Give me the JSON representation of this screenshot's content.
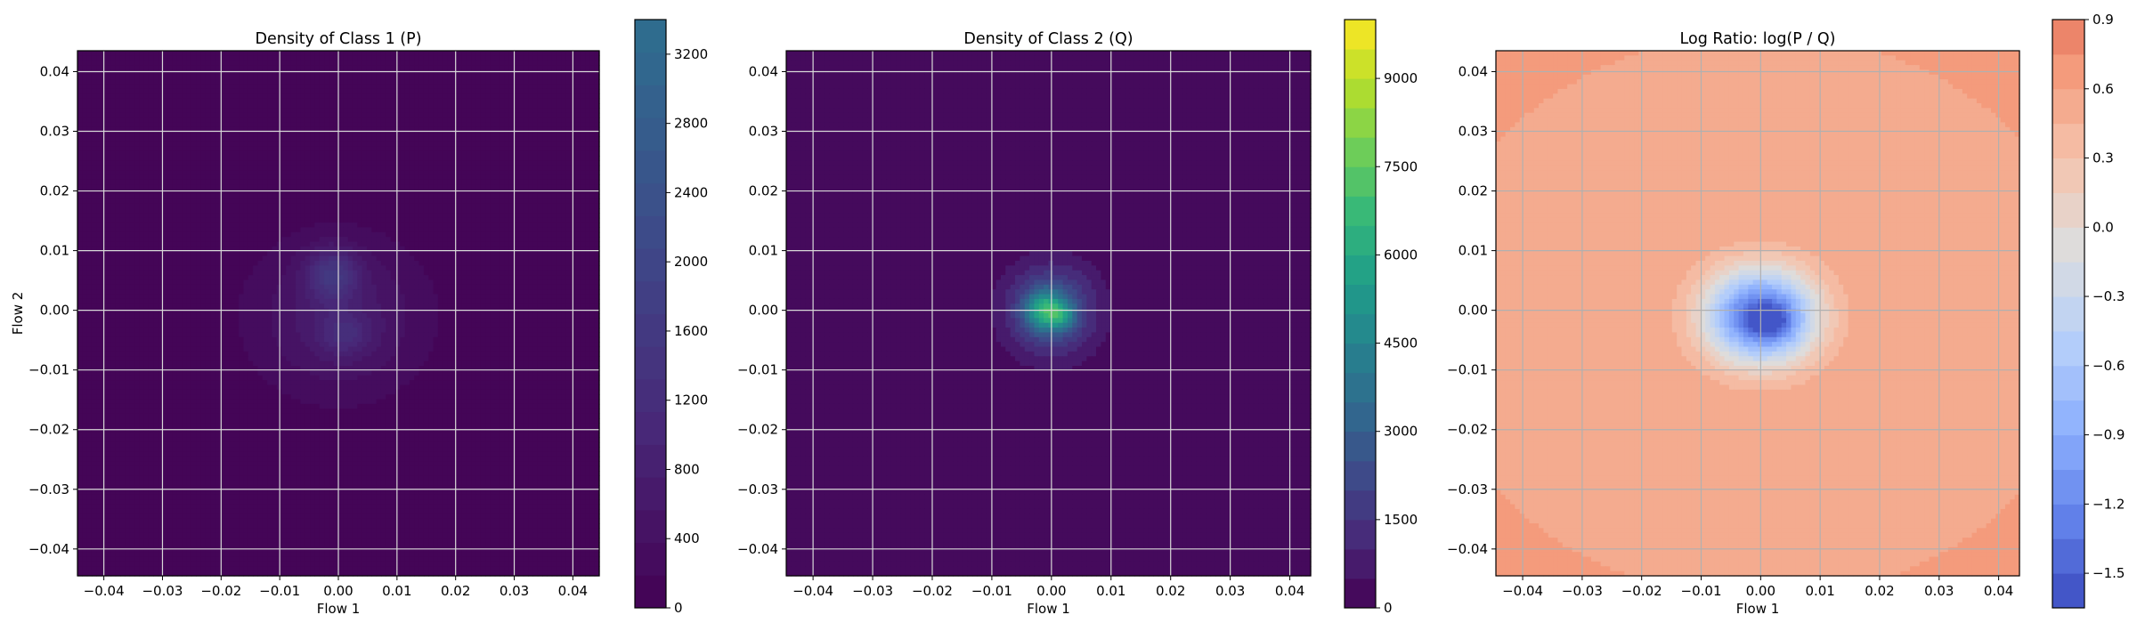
{
  "chart_data": [
    {
      "type": "heatmap",
      "title": "Density of Class 1 (P)",
      "xlabel": "Flow 1",
      "ylabel": "Flow 2",
      "xlim": [
        -0.0445,
        0.0445
      ],
      "ylim": [
        -0.0445,
        0.0435
      ],
      "x_ticks": [
        -0.04,
        -0.03,
        -0.02,
        -0.01,
        0.0,
        0.01,
        0.02,
        0.03,
        0.04
      ],
      "x_tick_labels": [
        "−0.04",
        "−0.03",
        "−0.02",
        "−0.01",
        "0.00",
        "0.01",
        "0.02",
        "0.03",
        "0.04"
      ],
      "y_ticks": [
        -0.04,
        -0.03,
        -0.02,
        -0.01,
        0.0,
        0.01,
        0.02,
        0.03,
        0.04
      ],
      "y_tick_labels": [
        "−0.04",
        "−0.03",
        "−0.02",
        "−0.01",
        "0.00",
        "0.01",
        "0.02",
        "0.03",
        "0.04"
      ],
      "grid": true,
      "colormap": "viridis",
      "colorbar": {
        "vmin": 0,
        "vmax": 3400,
        "cmap_max_fraction": 0.36,
        "levels": 18,
        "ticks": [
          0,
          400,
          800,
          1200,
          1600,
          2000,
          2400,
          2800,
          3200
        ],
        "tick_labels": [
          "0",
          "400",
          "800",
          "1200",
          "1600",
          "2000",
          "2400",
          "2800",
          "3200"
        ]
      },
      "density": {
        "background": 0,
        "blobs": [
          {
            "cx": 0.0,
            "cy": -0.001,
            "sx": 0.0105,
            "sy": 0.0095,
            "amp": 700
          },
          {
            "cx": -0.001,
            "cy": 0.006,
            "sx": 0.003,
            "sy": 0.003,
            "amp": 1100
          },
          {
            "cx": 0.001,
            "cy": -0.004,
            "sx": 0.003,
            "sy": 0.0025,
            "amp": 600
          }
        ]
      }
    },
    {
      "type": "heatmap",
      "title": "Density of Class 2 (Q)",
      "xlabel": "Flow 1",
      "ylabel": "",
      "xlim": [
        -0.0445,
        0.0435
      ],
      "ylim": [
        -0.0445,
        0.0435
      ],
      "x_ticks": [
        -0.04,
        -0.03,
        -0.02,
        -0.01,
        0.0,
        0.01,
        0.02,
        0.03,
        0.04
      ],
      "x_tick_labels": [
        "−0.04",
        "−0.03",
        "−0.02",
        "−0.01",
        "0.00",
        "0.01",
        "0.02",
        "0.03",
        "0.04"
      ],
      "y_ticks": [
        -0.04,
        -0.03,
        -0.02,
        -0.01,
        0.0,
        0.01,
        0.02,
        0.03,
        0.04
      ],
      "y_tick_labels": [
        "−0.04",
        "−0.03",
        "−0.02",
        "−0.01",
        "0.00",
        "0.01",
        "0.02",
        "0.03",
        "0.04"
      ],
      "grid": true,
      "colormap": "viridis",
      "colorbar": {
        "vmin": 0,
        "vmax": 10000,
        "cmap_max_fraction": 1.0,
        "levels": 20,
        "ticks": [
          0,
          1500,
          3000,
          4500,
          6000,
          7500,
          9000
        ],
        "tick_labels": [
          "0",
          "1500",
          "3000",
          "4500",
          "6000",
          "7500",
          "9000"
        ]
      },
      "density": {
        "background": 0,
        "blobs": [
          {
            "cx": 0.0,
            "cy": 0.0,
            "sx": 0.0055,
            "sy": 0.0055,
            "amp": 2800
          },
          {
            "cx": -0.001,
            "cy": 0.0,
            "sx": 0.0022,
            "sy": 0.0022,
            "amp": 4200
          },
          {
            "cx": 0.002,
            "cy": -0.001,
            "sx": 0.0015,
            "sy": 0.0015,
            "amp": 2200
          }
        ]
      }
    },
    {
      "type": "heatmap",
      "title": "Log Ratio: log(P / Q)",
      "xlabel": "Flow 1",
      "ylabel": "",
      "xlim": [
        -0.0445,
        0.0435
      ],
      "ylim": [
        -0.0445,
        0.0435
      ],
      "x_ticks": [
        -0.04,
        -0.03,
        -0.02,
        -0.01,
        0.0,
        0.01,
        0.02,
        0.03,
        0.04
      ],
      "x_tick_labels": [
        "−0.04",
        "−0.03",
        "−0.02",
        "−0.01",
        "0.00",
        "0.01",
        "0.02",
        "0.03",
        "0.04"
      ],
      "y_ticks": [
        -0.04,
        -0.03,
        -0.02,
        -0.01,
        0.0,
        0.01,
        0.02,
        0.03,
        0.04
      ],
      "y_tick_labels": [
        "−0.04",
        "−0.03",
        "−0.02",
        "−0.01",
        "0.00",
        "0.01",
        "0.02",
        "0.03",
        "0.04"
      ],
      "grid": true,
      "colormap": "coolwarm",
      "colorbar": {
        "vmin": -1.65,
        "vmax": 0.9,
        "cmap_range": [
          0.0,
          0.82
        ],
        "levels": 17,
        "ticks": [
          -1.5,
          -1.2,
          -0.9,
          -0.6,
          -0.3,
          0.0,
          0.3,
          0.6,
          0.9
        ],
        "tick_labels": [
          "−1.5",
          "−1.2",
          "−0.9",
          "−0.6",
          "−0.3",
          "0.0",
          "0.3",
          "0.6",
          "0.9"
        ]
      },
      "density": {
        "background": 0.6,
        "blobs": [
          {
            "cx": 0.0,
            "cy": -0.001,
            "sx": 0.0065,
            "sy": 0.0055,
            "amp": -2.1
          },
          {
            "cx": 0.002,
            "cy": -0.002,
            "sx": 0.0025,
            "sy": 0.002,
            "amp": -0.5
          }
        ]
      }
    }
  ]
}
